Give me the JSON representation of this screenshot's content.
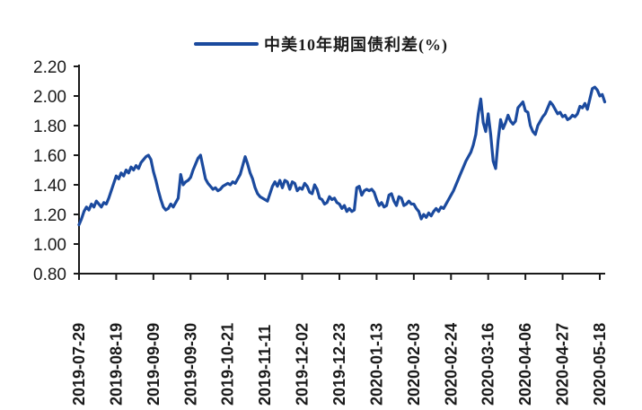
{
  "chart_data": {
    "type": "line",
    "title": "",
    "legend": "中美10年期国债利差(%)",
    "legend_position": "top-center",
    "grid": false,
    "background": "#ffffff",
    "axis_color": "#1a1a1a",
    "ylim": [
      0.8,
      2.2
    ],
    "y_tick_labels": [
      "2.20",
      "2.00",
      "1.80",
      "1.60",
      "1.40",
      "1.20",
      "1.00",
      "0.80"
    ],
    "x_tick_labels": [
      "2019-07-29",
      "2019-08-19",
      "2019-09-09",
      "2019-09-30",
      "2019-10-21",
      "2019-11-11",
      "2019-12-02",
      "2019-12-23",
      "2020-01-13",
      "2020-02-03",
      "2020-02-24",
      "2020-03-16",
      "2020-04-06",
      "2020-04-27",
      "2020-05-18"
    ],
    "x_points_per_tick": 15,
    "x_frequency": "weekday-daily",
    "series": [
      {
        "name": "中美10年期国债利差(%)",
        "color": "#1B4A9E",
        "values": [
          1.13,
          1.17,
          1.22,
          1.25,
          1.23,
          1.27,
          1.25,
          1.29,
          1.27,
          1.25,
          1.28,
          1.27,
          1.31,
          1.36,
          1.41,
          1.46,
          1.44,
          1.48,
          1.46,
          1.5,
          1.48,
          1.52,
          1.5,
          1.53,
          1.51,
          1.55,
          1.57,
          1.59,
          1.6,
          1.57,
          1.49,
          1.43,
          1.36,
          1.3,
          1.25,
          1.23,
          1.24,
          1.27,
          1.25,
          1.28,
          1.31,
          1.47,
          1.4,
          1.42,
          1.43,
          1.45,
          1.5,
          1.54,
          1.58,
          1.6,
          1.52,
          1.44,
          1.41,
          1.39,
          1.37,
          1.38,
          1.36,
          1.37,
          1.39,
          1.4,
          1.41,
          1.4,
          1.42,
          1.41,
          1.44,
          1.47,
          1.53,
          1.59,
          1.54,
          1.48,
          1.44,
          1.38,
          1.34,
          1.32,
          1.31,
          1.3,
          1.29,
          1.34,
          1.39,
          1.42,
          1.39,
          1.43,
          1.38,
          1.43,
          1.42,
          1.37,
          1.42,
          1.41,
          1.36,
          1.38,
          1.37,
          1.41,
          1.39,
          1.35,
          1.34,
          1.4,
          1.37,
          1.31,
          1.3,
          1.27,
          1.28,
          1.32,
          1.3,
          1.31,
          1.28,
          1.27,
          1.24,
          1.26,
          1.22,
          1.24,
          1.22,
          1.23,
          1.38,
          1.39,
          1.33,
          1.36,
          1.37,
          1.36,
          1.37,
          1.35,
          1.3,
          1.26,
          1.28,
          1.25,
          1.26,
          1.33,
          1.34,
          1.29,
          1.26,
          1.32,
          1.31,
          1.26,
          1.27,
          1.29,
          1.27,
          1.27,
          1.24,
          1.22,
          1.17,
          1.2,
          1.18,
          1.21,
          1.19,
          1.22,
          1.24,
          1.22,
          1.25,
          1.24,
          1.27,
          1.3,
          1.33,
          1.36,
          1.4,
          1.44,
          1.48,
          1.52,
          1.56,
          1.59,
          1.62,
          1.67,
          1.74,
          1.88,
          1.98,
          1.82,
          1.76,
          1.88,
          1.74,
          1.56,
          1.51,
          1.7,
          1.84,
          1.78,
          1.82,
          1.87,
          1.83,
          1.81,
          1.83,
          1.92,
          1.94,
          1.96,
          1.9,
          1.89,
          1.8,
          1.76,
          1.74,
          1.8,
          1.83,
          1.86,
          1.88,
          1.92,
          1.96,
          1.94,
          1.91,
          1.88,
          1.89,
          1.86,
          1.87,
          1.84,
          1.85,
          1.87,
          1.86,
          1.88,
          1.93,
          1.92,
          1.95,
          1.91,
          1.98,
          2.05,
          2.06,
          2.04,
          2.0,
          2.01,
          1.96
        ]
      }
    ]
  }
}
